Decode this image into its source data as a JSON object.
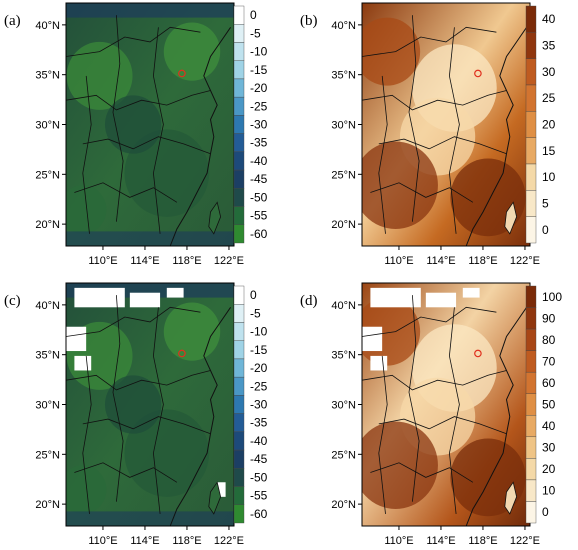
{
  "panels": [
    {
      "id": "a",
      "label": "(a)",
      "lat_ticks": [
        "40°N",
        "35°N",
        "30°N",
        "25°N",
        "20°N"
      ],
      "lon_ticks": [],
      "colorbar": [
        "0",
        "-5",
        "-10",
        "-15",
        "-20",
        "-25",
        "-30",
        "-35",
        "-40",
        "-45",
        "-50",
        "-55",
        "-60"
      ],
      "palette": "blue-green"
    },
    {
      "id": "b",
      "label": "(b)",
      "lat_ticks": [
        "40°N",
        "35°N",
        "30°N",
        "25°N",
        "20°N"
      ],
      "lon_ticks": [
        "110°E",
        "114°E",
        "118°E",
        "122°E"
      ],
      "colorbar": [
        "40",
        "35",
        "30",
        "25",
        "20",
        "15",
        "10",
        "5",
        "0"
      ],
      "palette": "brown"
    },
    {
      "id": "c",
      "label": "(c)",
      "lat_ticks": [
        "40°N",
        "35°N",
        "30°N",
        "25°N",
        "20°N"
      ],
      "lon_ticks": [],
      "colorbar": [
        "0",
        "-5",
        "-10",
        "-15",
        "-20",
        "-25",
        "-30",
        "-35",
        "-40",
        "-45",
        "-50",
        "-55",
        "-60"
      ],
      "palette": "blue-green"
    },
    {
      "id": "d",
      "label": "(d)",
      "lat_ticks": [
        "40°N",
        "35°N",
        "30°N",
        "25°N",
        "20°N"
      ],
      "lon_ticks": [
        "110°E",
        "114°E",
        "118°E",
        "122°E"
      ],
      "colorbar": [
        "100",
        "90",
        "80",
        "70",
        "60",
        "50",
        "40",
        "30",
        "20",
        "10",
        "0"
      ],
      "palette": "brown"
    }
  ],
  "bottom_left_lon_ticks": [
    "110°E",
    "114°E",
    "118°E",
    "122°E"
  ],
  "top_left_lon_ticks": [
    "110°E",
    "114°E",
    "118°E",
    "122°E"
  ],
  "colors": {
    "green_dark": "#1f4a2b",
    "green_mid": "#2f6f36",
    "green_light": "#3f8a3a",
    "blue_dark": "#1d3a5c",
    "brown_dark": "#7a2e0b",
    "brown_mid": "#c2651f",
    "brown_light": "#f0c58a",
    "cream": "#fbf2d8",
    "site_marker": "#e0301e"
  }
}
